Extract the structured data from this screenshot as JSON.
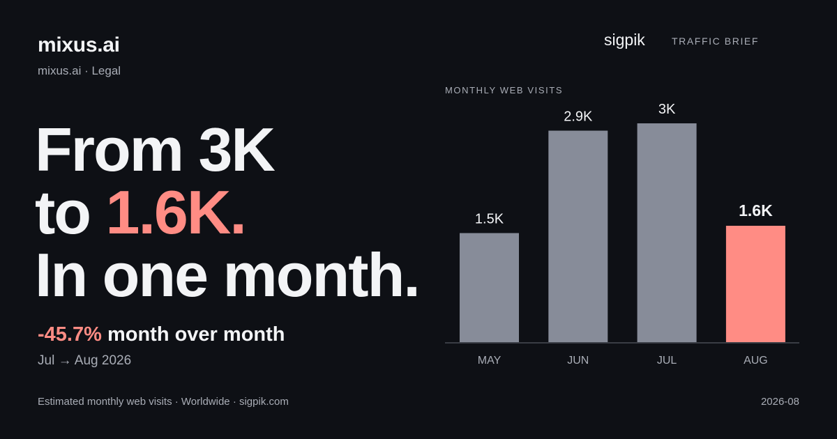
{
  "header": {
    "site_name": "mixus.ai",
    "site_sub": "mixus.ai · Legal",
    "brand": "sigpik",
    "brief_label": "TRAFFIC BRIEF"
  },
  "headline": {
    "line1": "From 3K",
    "line2_prefix": "to ",
    "line2_accent": "1.6K.",
    "line3": "In one month."
  },
  "change": {
    "pct": "-45.7%",
    "text": " month over month",
    "period": "Jul → Aug 2026"
  },
  "footer": {
    "source": "Estimated monthly web visits · Worldwide · sigpik.com",
    "date": "2026-08"
  },
  "colors": {
    "background": "#0e1015",
    "bar": "#878c99",
    "highlight": "#ff8c84",
    "axis": "#3a3d45"
  },
  "chart_data": {
    "type": "bar",
    "title": "MONTHLY WEB VISITS",
    "categories": [
      "MAY",
      "JUN",
      "JUL",
      "AUG"
    ],
    "values": [
      1500,
      2900,
      3000,
      1600
    ],
    "value_labels": [
      "1.5K",
      "2.9K",
      "3K",
      "1.6K"
    ],
    "highlight_index": 3,
    "ylim": [
      0,
      3000
    ],
    "grid": false,
    "legend": "none"
  }
}
